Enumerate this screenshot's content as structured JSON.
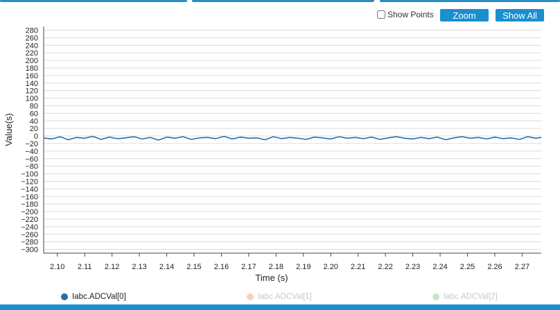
{
  "controls": {
    "show_points_label": "Show Points",
    "show_points_checked": false,
    "zoom_label": "Zoom",
    "show_all_label": "Show All"
  },
  "colors": {
    "accent": "#1a8fce",
    "series0": "#2a6fa8",
    "series1": "#f8d2b6",
    "series2": "#c8e4c8",
    "grid": "#dcdcdc"
  },
  "chart_data": {
    "type": "line",
    "xlabel": "Time (s)",
    "ylabel": "Value(s)",
    "xlim": [
      2.095,
      2.277
    ],
    "ylim": [
      -310,
      290
    ],
    "xticks": [
      2.1,
      2.11,
      2.12,
      2.13,
      2.14,
      2.15,
      2.16,
      2.17,
      2.18,
      2.19,
      2.2,
      2.21,
      2.22,
      2.23,
      2.24,
      2.25,
      2.26,
      2.27
    ],
    "xtick_labels": [
      "2.10",
      "2.11",
      "2.12",
      "2.13",
      "2.14",
      "2.15",
      "2.16",
      "2.17",
      "2.18",
      "2.19",
      "2.20",
      "2.21",
      "2.22",
      "2.23",
      "2.24",
      "2.25",
      "2.26",
      "2.27"
    ],
    "yticks": [
      280,
      260,
      240,
      220,
      200,
      180,
      160,
      140,
      120,
      100,
      80,
      60,
      40,
      20,
      0,
      -20,
      -40,
      -60,
      -80,
      -100,
      -120,
      -140,
      -160,
      -180,
      -200,
      -220,
      -240,
      -260,
      -280,
      -300
    ],
    "ytick_labels": [
      "280",
      "260",
      "240",
      "220",
      "200",
      "180",
      "160",
      "140",
      "120",
      "100",
      "80",
      "60",
      "40",
      "20",
      "0",
      "−20",
      "−40",
      "−60",
      "−80",
      "−100",
      "−120",
      "−140",
      "−160",
      "−180",
      "−200",
      "−220",
      "−240",
      "−260",
      "−280",
      "−300"
    ],
    "grid": true,
    "legend_position": "bottom",
    "series": [
      {
        "name": "Iabc.ADCVal[0]",
        "visible": true,
        "x": [
          2.095,
          2.098,
          2.101,
          2.104,
          2.107,
          2.11,
          2.113,
          2.116,
          2.119,
          2.122,
          2.125,
          2.128,
          2.131,
          2.134,
          2.137,
          2.14,
          2.143,
          2.146,
          2.149,
          2.152,
          2.155,
          2.158,
          2.161,
          2.164,
          2.167,
          2.17,
          2.173,
          2.176,
          2.179,
          2.182,
          2.185,
          2.188,
          2.191,
          2.194,
          2.197,
          2.2,
          2.203,
          2.206,
          2.209,
          2.212,
          2.215,
          2.218,
          2.221,
          2.224,
          2.227,
          2.23,
          2.233,
          2.236,
          2.239,
          2.242,
          2.245,
          2.248,
          2.251,
          2.254,
          2.257,
          2.26,
          2.263,
          2.266,
          2.269,
          2.272,
          2.275,
          2.277
        ],
        "y": [
          -5,
          -8,
          -2,
          -10,
          -4,
          -6,
          -1,
          -9,
          -3,
          -7,
          -5,
          -2,
          -8,
          -4,
          -11,
          -3,
          -6,
          -2,
          -9,
          -5,
          -4,
          -7,
          -1,
          -8,
          -3,
          -6,
          -5,
          -10,
          -2,
          -7,
          -4,
          -6,
          -9,
          -3,
          -5,
          -8,
          -2,
          -6,
          -4,
          -7,
          -3,
          -9,
          -5,
          -2,
          -6,
          -8,
          -4,
          -7,
          -3,
          -10,
          -5,
          -2,
          -6,
          -4,
          -8,
          -3,
          -7,
          -5,
          -9,
          -2,
          -6,
          -4
        ]
      },
      {
        "name": "Iabc.ADCVal[1]",
        "visible": false
      },
      {
        "name": "Iabc.ADCVal[2]",
        "visible": false
      }
    ]
  }
}
